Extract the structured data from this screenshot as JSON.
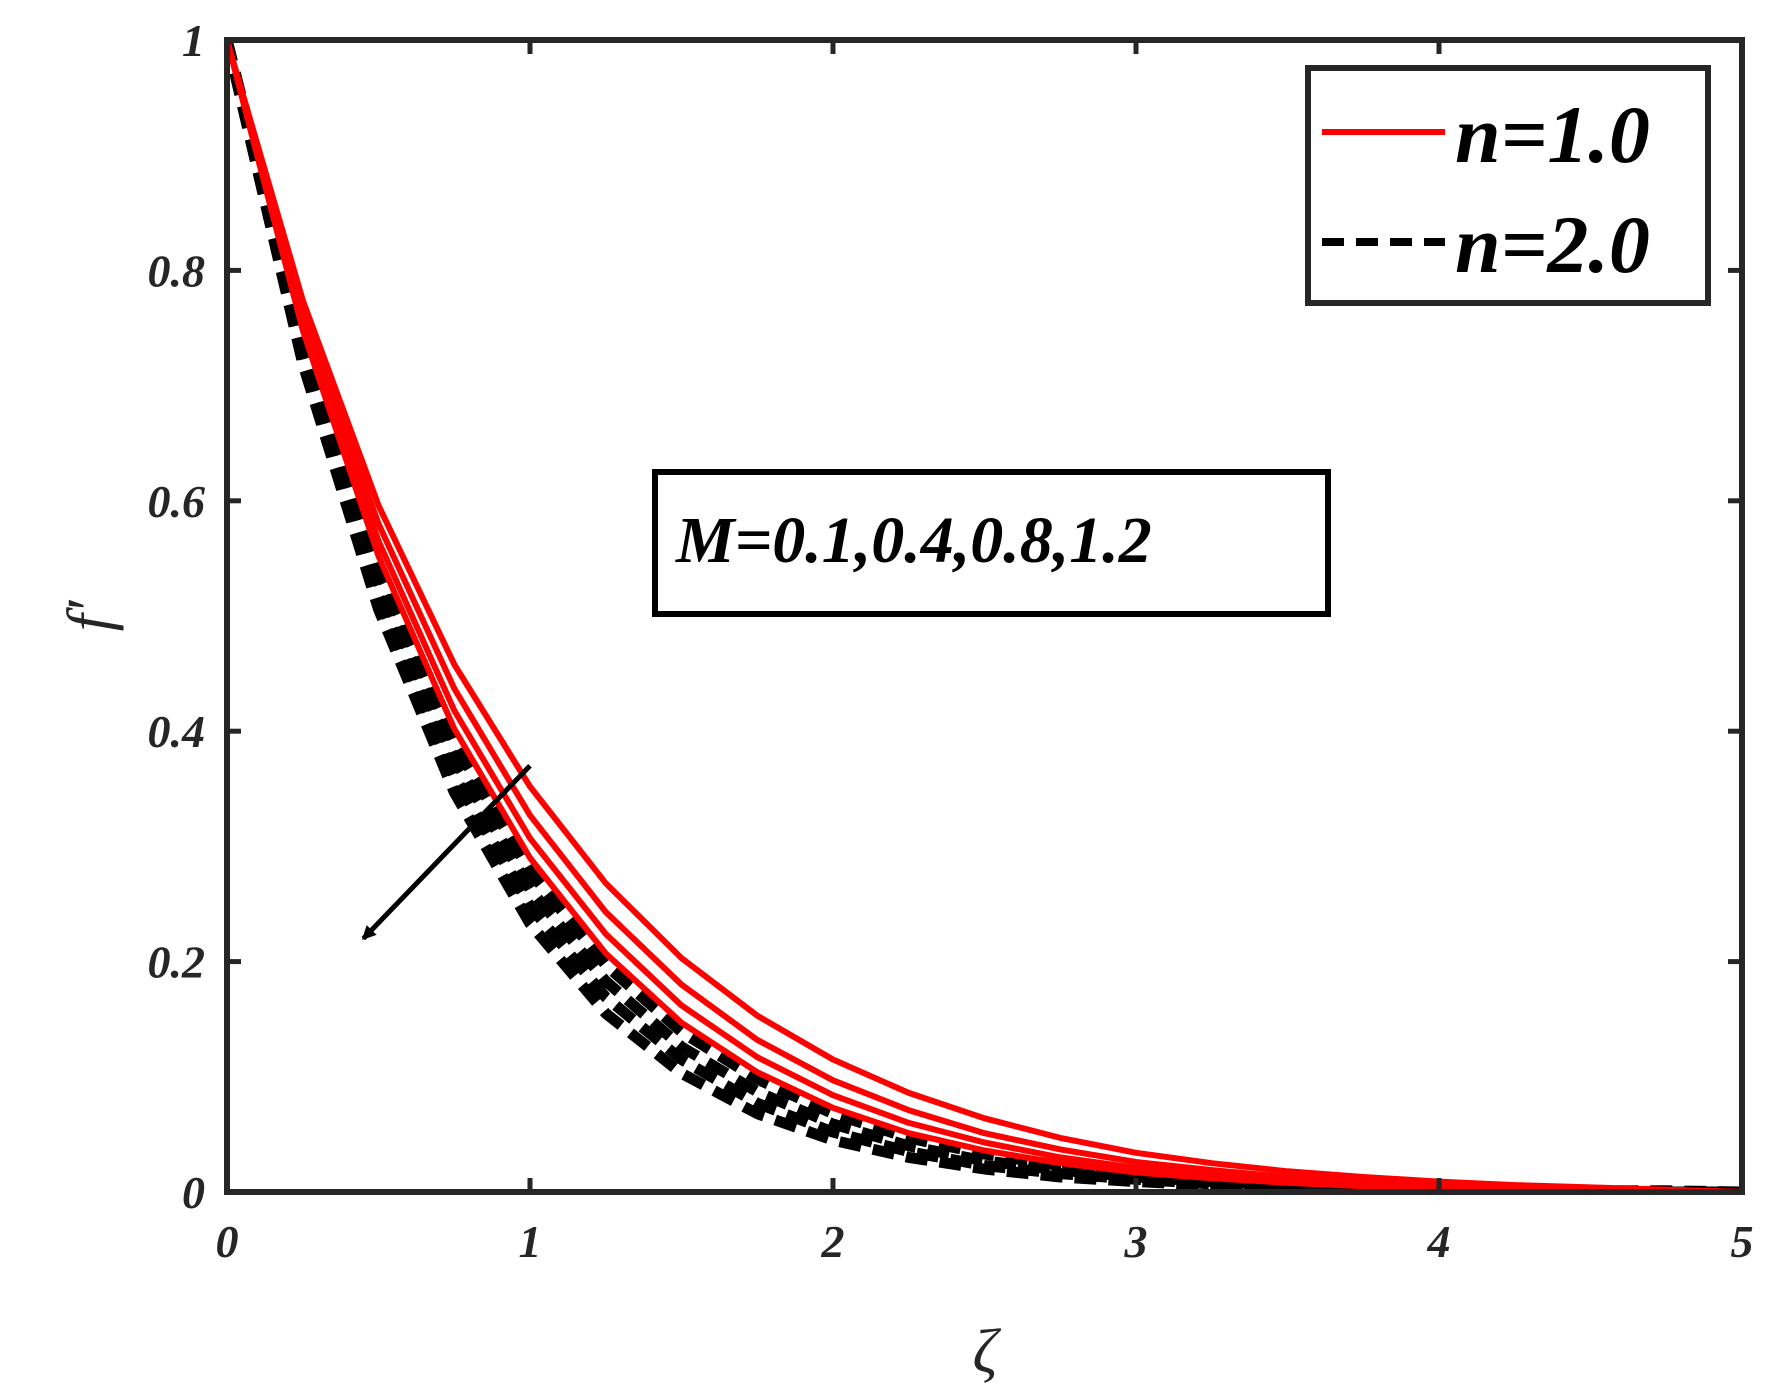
{
  "chart_data": {
    "type": "line",
    "title": "",
    "xlabel": "ζ",
    "ylabel": "f′",
    "xlim": [
      0,
      5
    ],
    "ylim": [
      0,
      1
    ],
    "xticks": [
      0,
      1,
      2,
      3,
      4,
      5
    ],
    "yticks": [
      0,
      0.2,
      0.4,
      0.6,
      0.8,
      1
    ],
    "xtick_labels": [
      "0",
      "1",
      "2",
      "3",
      "4",
      "5"
    ],
    "ytick_labels": [
      "0",
      "0.2",
      "0.4",
      "0.6",
      "0.8",
      "1"
    ],
    "grid": false,
    "legend": {
      "placement": "top-right",
      "entries": [
        {
          "label": "n=1.0",
          "style": "solid",
          "color": "#ff0000"
        },
        {
          "label": "n=2.0",
          "style": "dashed",
          "color": "#000000"
        }
      ]
    },
    "annotation": {
      "text": "M=0.1,0.4,0.8,1.2",
      "arrow_from": [
        1.0,
        0.37
      ],
      "arrow_to": [
        0.45,
        0.22
      ]
    },
    "x": [
      0,
      0.25,
      0.5,
      0.75,
      1.0,
      1.25,
      1.5,
      1.75,
      2.0,
      2.25,
      2.5,
      2.75,
      3.0,
      3.25,
      3.5,
      3.75,
      4.0,
      4.25,
      4.5,
      4.75,
      5.0
    ],
    "series": [
      {
        "group": "n=1.0",
        "M": "0.1",
        "style": "solid",
        "color": "#ff0000",
        "values": [
          1.0,
          0.774,
          0.596,
          0.458,
          0.352,
          0.268,
          0.203,
          0.153,
          0.115,
          0.086,
          0.064,
          0.047,
          0.034,
          0.025,
          0.018,
          0.013,
          0.009,
          0.006,
          0.004,
          0.002,
          0.0
        ]
      },
      {
        "group": "n=1.0",
        "M": "0.4",
        "style": "solid",
        "color": "#ff0000",
        "values": [
          1.0,
          0.765,
          0.58,
          0.437,
          0.327,
          0.243,
          0.18,
          0.132,
          0.097,
          0.071,
          0.051,
          0.037,
          0.026,
          0.019,
          0.013,
          0.009,
          0.006,
          0.004,
          0.003,
          0.002,
          0.0
        ]
      },
      {
        "group": "n=1.0",
        "M": "0.8",
        "style": "solid",
        "color": "#ff0000",
        "values": [
          1.0,
          0.756,
          0.565,
          0.418,
          0.307,
          0.224,
          0.162,
          0.117,
          0.084,
          0.06,
          0.043,
          0.03,
          0.021,
          0.015,
          0.01,
          0.007,
          0.005,
          0.003,
          0.002,
          0.001,
          0.0
        ]
      },
      {
        "group": "n=1.0",
        "M": "1.2",
        "style": "solid",
        "color": "#ff0000",
        "values": [
          1.0,
          0.748,
          0.552,
          0.402,
          0.29,
          0.207,
          0.147,
          0.104,
          0.073,
          0.051,
          0.036,
          0.025,
          0.017,
          0.012,
          0.008,
          0.005,
          0.004,
          0.002,
          0.001,
          0.001,
          0.0
        ]
      },
      {
        "group": "n=2.0",
        "M": "0.1",
        "style": "dashed",
        "color": "#000000",
        "values": [
          1.0,
          0.74,
          0.54,
          0.39,
          0.278,
          0.197,
          0.139,
          0.098,
          0.068,
          0.047,
          0.033,
          0.023,
          0.016,
          0.011,
          0.007,
          0.005,
          0.003,
          0.002,
          0.001,
          0.001,
          0.0
        ]
      },
      {
        "group": "n=2.0",
        "M": "0.4",
        "style": "dashed",
        "color": "#000000",
        "values": [
          1.0,
          0.733,
          0.529,
          0.376,
          0.263,
          0.183,
          0.126,
          0.087,
          0.059,
          0.04,
          0.027,
          0.019,
          0.013,
          0.009,
          0.006,
          0.004,
          0.003,
          0.002,
          0.001,
          0.0,
          0.0
        ]
      },
      {
        "group": "n=2.0",
        "M": "0.8",
        "style": "dashed",
        "color": "#000000",
        "values": [
          1.0,
          0.726,
          0.517,
          0.361,
          0.248,
          0.169,
          0.115,
          0.077,
          0.052,
          0.035,
          0.023,
          0.016,
          0.011,
          0.007,
          0.005,
          0.003,
          0.002,
          0.001,
          0.001,
          0.0,
          0.0
        ]
      },
      {
        "group": "n=2.0",
        "M": "1.2",
        "style": "dashed",
        "color": "#000000",
        "values": [
          1.0,
          0.719,
          0.506,
          0.347,
          0.233,
          0.155,
          0.103,
          0.068,
          0.045,
          0.03,
          0.02,
          0.013,
          0.009,
          0.006,
          0.004,
          0.003,
          0.002,
          0.001,
          0.001,
          0.0,
          0.0
        ]
      }
    ]
  }
}
